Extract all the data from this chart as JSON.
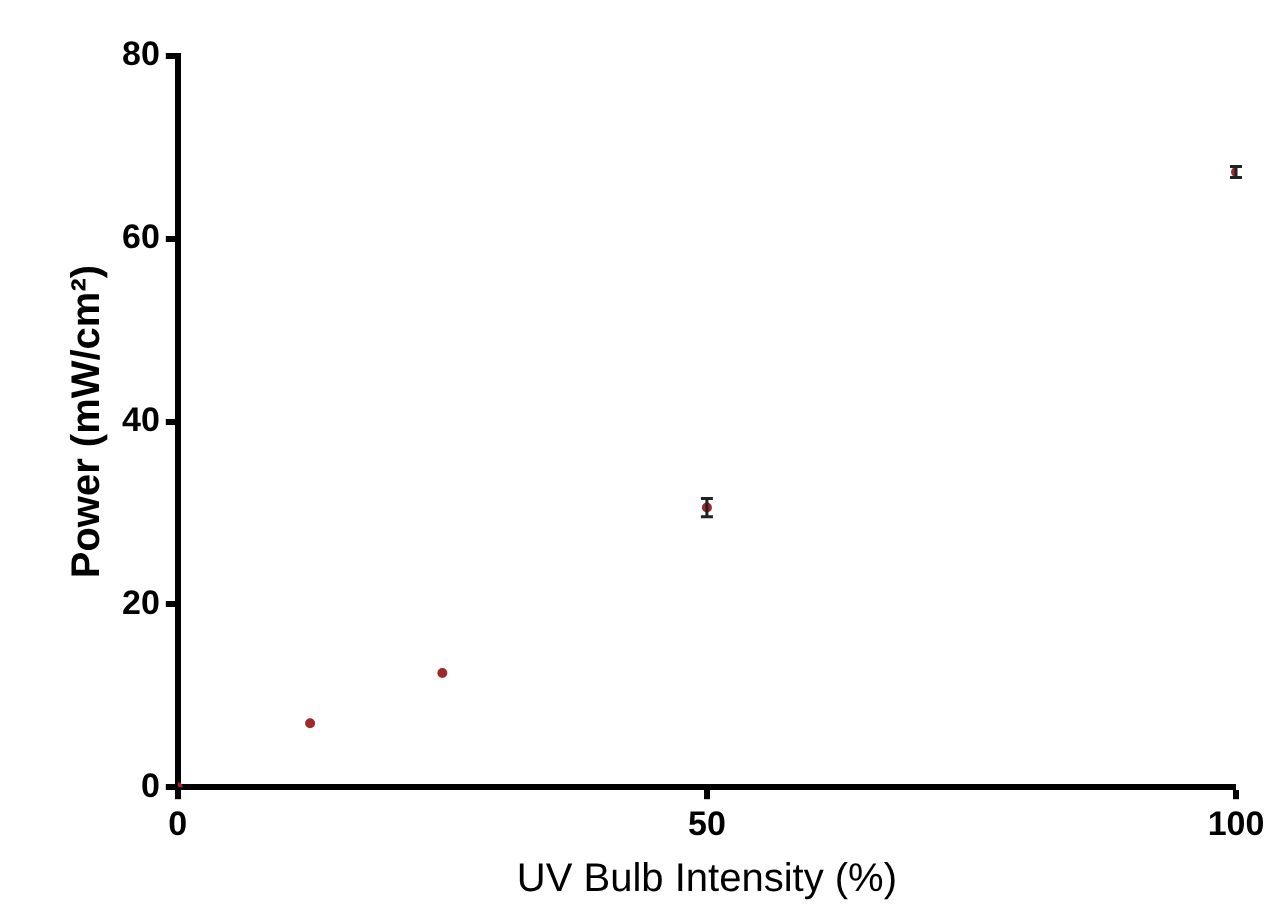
{
  "chart_data": {
    "type": "scatter",
    "xlabel": "UV Bulb Intensity (%)",
    "ylabel": "Power (mW/cm²)",
    "x": [
      0,
      12.5,
      25,
      50,
      100
    ],
    "series": [
      {
        "color": "#a0282a",
        "values": [
          0,
          7,
          12.5,
          30.6,
          67.3
        ],
        "errors": [
          null,
          null,
          null,
          1,
          0.6
        ]
      }
    ],
    "xlim": [
      0,
      100
    ],
    "xticks": [
      0,
      50,
      100
    ],
    "ylim": [
      0,
      80
    ],
    "yticks": [
      0,
      20,
      40,
      60,
      80
    ],
    "grid": false,
    "legend": false,
    "marker": "circle"
  }
}
